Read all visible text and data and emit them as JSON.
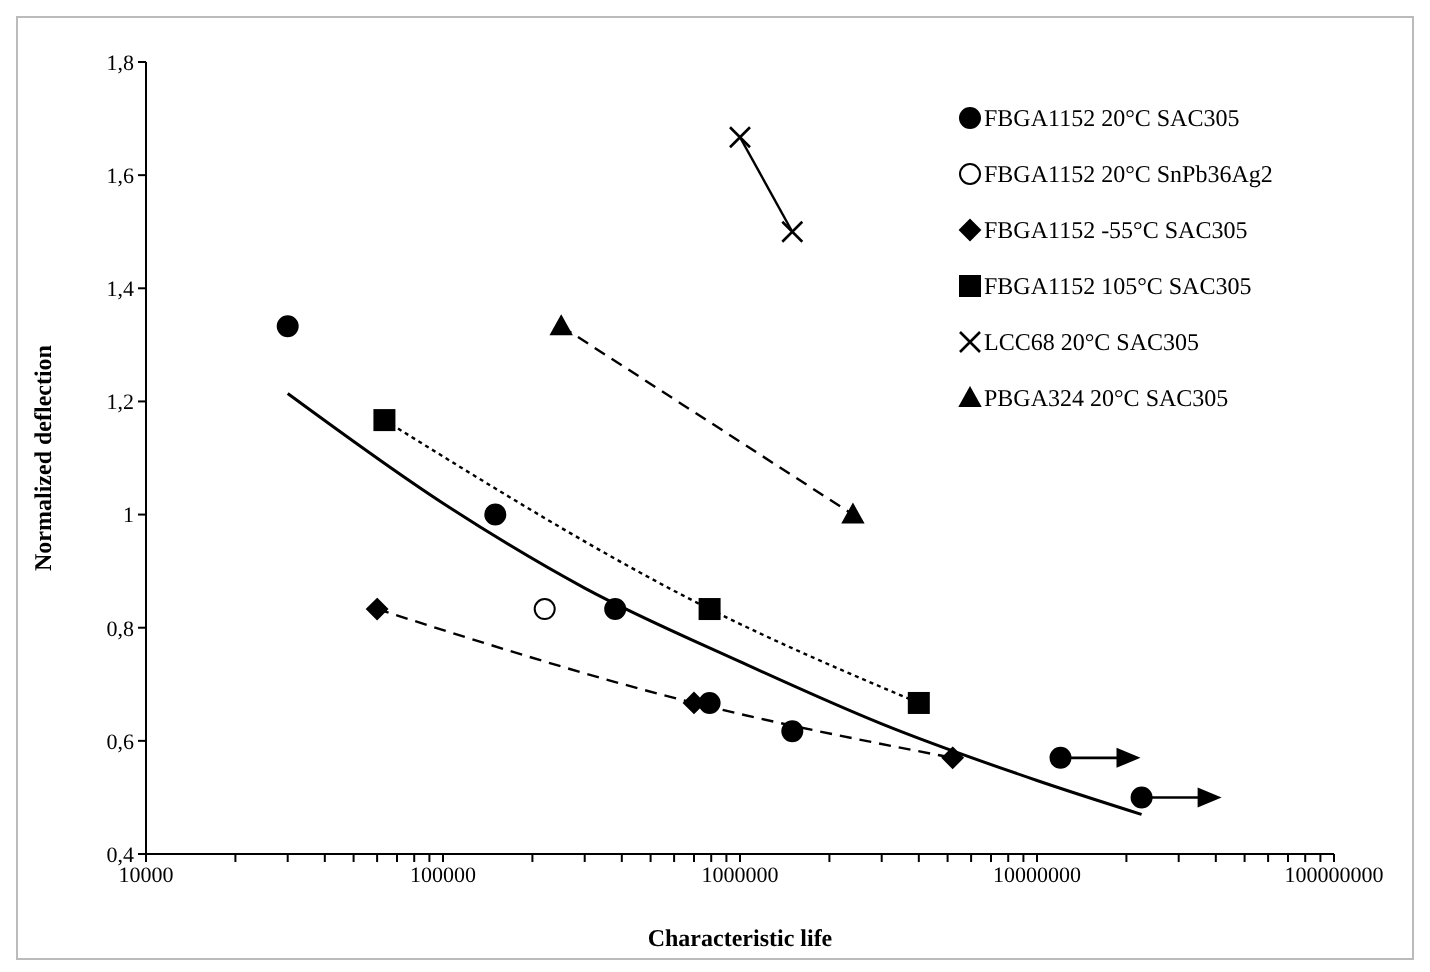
{
  "chart_data": {
    "type": "scatter",
    "xlabel": "Characteristic life",
    "ylabel": "Normalized deflection",
    "log": "x",
    "grid": false,
    "legend": "top right",
    "xlim": [
      10000,
      100000000
    ],
    "xticks": [
      10000,
      {
        "value": 20000,
        "label": null
      },
      {
        "value": 30000,
        "label": null
      },
      {
        "value": 40000,
        "label": null
      },
      {
        "value": 50000,
        "label": null
      },
      {
        "value": 60000,
        "label": null
      },
      {
        "value": 70000,
        "label": null
      },
      {
        "value": 80000,
        "label": null
      },
      {
        "value": 90000,
        "label": null
      },
      100000,
      {
        "value": 200000,
        "label": null
      },
      {
        "value": 300000,
        "label": null
      },
      {
        "value": 400000,
        "label": null
      },
      {
        "value": 500000,
        "label": null
      },
      {
        "value": 600000,
        "label": null
      },
      {
        "value": 700000,
        "label": null
      },
      {
        "value": 800000,
        "label": null
      },
      {
        "value": 900000,
        "label": null
      },
      1000000,
      {
        "value": 2000000,
        "label": null
      },
      {
        "value": 3000000,
        "label": null
      },
      {
        "value": 4000000,
        "label": null
      },
      {
        "value": 5000000,
        "label": null
      },
      {
        "value": 6000000,
        "label": null
      },
      {
        "value": 7000000,
        "label": null
      },
      {
        "value": 8000000,
        "label": null
      },
      {
        "value": 9000000,
        "label": null
      },
      10000000,
      {
        "value": 20000000,
        "label": null
      },
      {
        "value": 30000000,
        "label": null
      },
      {
        "value": 40000000,
        "label": null
      },
      {
        "value": 50000000,
        "label": null
      },
      {
        "value": 60000000,
        "label": null
      },
      {
        "value": 70000000,
        "label": null
      },
      {
        "value": 80000000,
        "label": null
      },
      {
        "value": 90000000,
        "label": null
      },
      100000000
    ],
    "ylim": [
      0.4,
      1.8
    ],
    "yticks": [
      {
        "value": 0.4,
        "label": "0,4"
      },
      {
        "value": 0.6,
        "label": "0,6"
      },
      {
        "value": 0.8,
        "label": "0,8"
      },
      1,
      {
        "value": 1.2,
        "label": "1,2"
      },
      {
        "value": 1.4,
        "label": "1,4"
      },
      {
        "value": 1.6,
        "label": "1,6"
      },
      {
        "value": 1.8,
        "label": "1,8"
      }
    ],
    "series": [
      {
        "name": "FBGA1152 20°C SAC305",
        "marker": "circle",
        "color": "#000000",
        "x": [
          30000,
          150000,
          380000,
          790000,
          1500000,
          12000000,
          22500000
        ],
        "values": [
          1.333,
          1,
          0.833,
          0.667,
          0.617,
          0.57,
          0.5
        ]
      },
      {
        "name": "FBGA1152 20°C SnPb36Ag2",
        "marker": "circle",
        "color": "#ffffff",
        "x": [
          220000
        ],
        "values": [
          0.833
        ]
      },
      {
        "name": "FBGA1152 -55°C SAC305",
        "type": "line",
        "marker": "diamond",
        "line_style": "dashed",
        "color": "#000000",
        "x": [
          60000,
          700000,
          5200000
        ],
        "values": [
          0.833,
          0.667,
          0.57
        ]
      },
      {
        "name": "FBGA1152 105°C SAC305",
        "type": "line",
        "marker": "square",
        "line_style": "dotted",
        "color": "#000000",
        "x": [
          63500,
          790000,
          4000000
        ],
        "values": [
          1.167,
          0.833,
          0.667
        ]
      },
      {
        "name": "LCC68 20°C SAC305",
        "type": "line",
        "marker": "cross",
        "line_style": "solid",
        "color": "#000000",
        "x": [
          1000000,
          1500000
        ],
        "values": [
          1.667,
          1.5
        ]
      },
      {
        "name": "PBGA324 20°C SAC305",
        "type": "line",
        "marker": "triangle",
        "line_style": "dashed",
        "color": "#000000",
        "x": [
          250000,
          2400000
        ],
        "values": [
          1.333,
          1
        ]
      },
      {
        "type": "line",
        "marker": "none",
        "line_style": "solid",
        "color": "#000000",
        "x": [
          30000,
          100000,
          300000,
          1000000,
          3000000,
          10000000,
          22500000
        ],
        "values": [
          1.214,
          1.02,
          0.87,
          0.74,
          0.63,
          0.53,
          0.47
        ]
      }
    ]
  }
}
